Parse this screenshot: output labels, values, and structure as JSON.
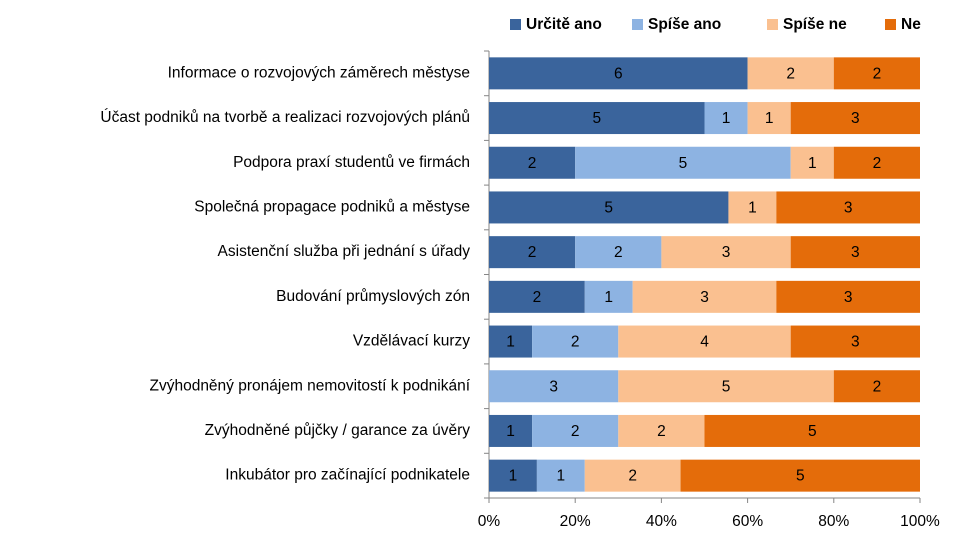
{
  "chart_data": {
    "type": "stacked_bar_100_horizontal",
    "categories": [
      "Informace o rozvojových záměrech městyse",
      "Účast podniků na tvorbě a realizaci rozvojových plánů",
      "Podpora praxí studentů ve firmách",
      "Společná propagace podniků a městyse",
      "Asistenční služba při jednání s úřady",
      "Budování průmyslových zón",
      "Vzdělávací kurzy",
      "Zvýhodněný pronájem nemovitostí k podnikání",
      "Zvýhodněné půjčky / garance za úvěry",
      "Inkubátor pro začínající podnikatele"
    ],
    "series": [
      {
        "name": "Určitě ano",
        "color": "#3a649c",
        "values": [
          6,
          5,
          2,
          5,
          2,
          2,
          1,
          0,
          1,
          1
        ]
      },
      {
        "name": "Spíše ano",
        "color": "#8db3e2",
        "values": [
          0,
          1,
          5,
          0,
          2,
          1,
          2,
          3,
          2,
          1
        ]
      },
      {
        "name": "Spíše ne",
        "color": "#fac090",
        "values": [
          2,
          1,
          1,
          1,
          3,
          3,
          4,
          5,
          2,
          2
        ]
      },
      {
        "name": "Ne",
        "color": "#e46c0a",
        "values": [
          2,
          3,
          2,
          3,
          3,
          3,
          3,
          2,
          5,
          5
        ]
      }
    ],
    "xlim": [
      0,
      100
    ],
    "xticks": [
      {
        "value": 0,
        "label": "0%"
      },
      {
        "value": 20,
        "label": "20%"
      },
      {
        "value": 40,
        "label": "40%"
      },
      {
        "value": 60,
        "label": "60%"
      },
      {
        "value": 80,
        "label": "80%"
      },
      {
        "value": 100,
        "label": "100%"
      }
    ],
    "grid": false,
    "legend": "top"
  }
}
